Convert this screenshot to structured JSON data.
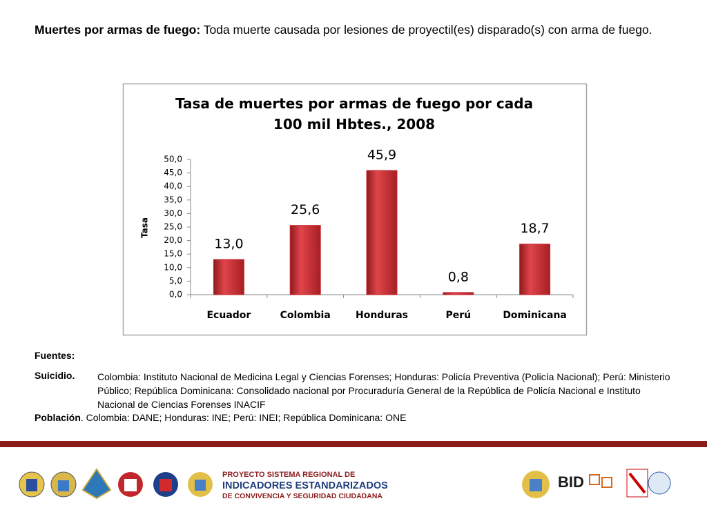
{
  "header": {
    "term": "Muertes por armas de fuego:",
    "definition": "Toda muerte causada por lesiones de proyectil(es) disparado(s) con arma de fuego."
  },
  "chart_data": {
    "type": "bar",
    "title": "Tasa de muertes por armas de fuego por cada 100 mil Hbtes., 2008",
    "y_label": "Tasa",
    "categories": [
      "Ecuador",
      "Colombia",
      "Honduras",
      "Perú",
      "Dominicana"
    ],
    "values": [
      13.0,
      25.6,
      45.9,
      0.8,
      18.7
    ],
    "value_labels": [
      "13,0",
      "25,6",
      "45,9",
      "0,8",
      "18,7"
    ],
    "color": "#c8282e",
    "ylim": [
      0,
      50
    ],
    "yticks": [
      {
        "value": 0,
        "label": "0,0"
      },
      {
        "value": 5,
        "label": "5,0"
      },
      {
        "value": 10,
        "label": "10,0"
      },
      {
        "value": 15,
        "label": "15,0"
      },
      {
        "value": 20,
        "label": "20,0"
      },
      {
        "value": 25,
        "label": "25,0"
      },
      {
        "value": 30,
        "label": "30,0"
      },
      {
        "value": 35,
        "label": "35,0"
      },
      {
        "value": 40,
        "label": "40,0"
      },
      {
        "value": 45,
        "label": "45,0"
      },
      {
        "value": 50,
        "label": "50,0"
      }
    ],
    "grid": false
  },
  "sources": {
    "heading": "Fuentes:",
    "suicidio_label": "Suicidio.",
    "suicidio_text": "Colombia: Instituto Nacional de Medicina Legal y Ciencias Forenses; Honduras: Policía Preventiva (Policía Nacional); Perú: Ministerio Público; República Dominicana: Consolidado nacional por Procuraduría General de la República de Policía Nacional e Instituto Nacional de Ciencias Forenses INACIF",
    "poblacion_label": "Población",
    "poblacion_text": ". Colombia: DANE; Honduras: INE; Perú: INEI; República Dominicana: ONE"
  },
  "footer": {
    "line1": "PROYECTO SISTEMA REGIONAL DE",
    "line2": "INDICADORES ESTANDARIZADOS",
    "line3": "DE CONVIVENCIA Y SEGURIDAD CIUDADANA",
    "bid": "BID"
  }
}
